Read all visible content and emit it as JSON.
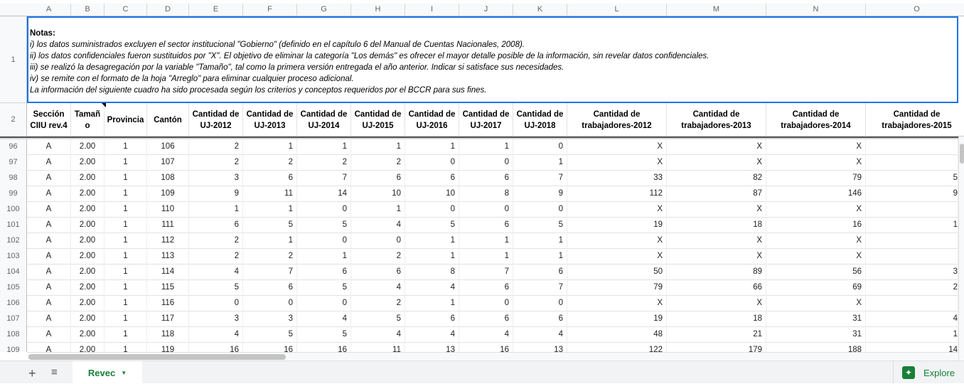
{
  "columns": [
    "A",
    "B",
    "C",
    "D",
    "E",
    "F",
    "G",
    "H",
    "I",
    "J",
    "K",
    "L",
    "M",
    "N",
    "O"
  ],
  "notes": {
    "title": "Notas:",
    "lines": [
      "i) los datos suministrados excluyen el sector institucional \"Gobierno\" (definido en el capítulo 6 del Manual de Cuentas Nacionales, 2008).",
      "ii) los datos confidenciales fueron sustituidos por \"X\". El objetivo de eliminar la categoría \"Los demás\" es ofrecer el mayor detalle posible de la información, sin revelar datos confidenciales.",
      "iii) se realizó la desagregación por la variable \"Tamaño\", tal como la primera versión entregada el año anterior. Indicar si satisface sus necesidades.",
      "iv) se remite con el formato de la hoja \"Arreglo\" para eliminar cualquier proceso adicional.",
      "La información del siguiente cuadro ha sido procesada según los criterios y conceptos requeridos por el BCCR para sus fines."
    ]
  },
  "row_labels": {
    "notes": "1",
    "headers": "2"
  },
  "headers": [
    "Sección CIIU rev.4",
    "Tamañ o",
    "Provincia",
    "Cantón",
    "Cantidad de UJ-2012",
    "Cantidad de UJ-2013",
    "Cantidad de UJ-2014",
    "Cantidad de UJ-2015",
    "Cantidad de UJ-2016",
    "Cantidad de UJ-2017",
    "Cantidad de UJ-2018",
    "Cantidad de trabajadores-2012",
    "Cantidad de trabajadores-2013",
    "Cantidad de trabajadores-2014",
    "Cantidad de trabajadores-2015"
  ],
  "rows": [
    {
      "n": "96",
      "cells": [
        "A",
        "2.00",
        "1",
        "106",
        "2",
        "1",
        "1",
        "1",
        "1",
        "1",
        "0",
        "X",
        "X",
        "X",
        ""
      ]
    },
    {
      "n": "97",
      "cells": [
        "A",
        "2.00",
        "1",
        "107",
        "2",
        "2",
        "2",
        "2",
        "0",
        "0",
        "1",
        "X",
        "X",
        "X",
        ""
      ]
    },
    {
      "n": "98",
      "cells": [
        "A",
        "2.00",
        "1",
        "108",
        "3",
        "6",
        "7",
        "6",
        "6",
        "6",
        "7",
        "33",
        "82",
        "79",
        "5"
      ]
    },
    {
      "n": "99",
      "cells": [
        "A",
        "2.00",
        "1",
        "109",
        "9",
        "11",
        "14",
        "10",
        "10",
        "8",
        "9",
        "112",
        "87",
        "146",
        "9"
      ]
    },
    {
      "n": "100",
      "cells": [
        "A",
        "2.00",
        "1",
        "110",
        "1",
        "1",
        "0",
        "1",
        "0",
        "0",
        "0",
        "X",
        "X",
        "X",
        ""
      ]
    },
    {
      "n": "101",
      "cells": [
        "A",
        "2.00",
        "1",
        "111",
        "6",
        "5",
        "5",
        "4",
        "5",
        "6",
        "5",
        "19",
        "18",
        "16",
        "1"
      ]
    },
    {
      "n": "102",
      "cells": [
        "A",
        "2.00",
        "1",
        "112",
        "2",
        "1",
        "0",
        "0",
        "1",
        "1",
        "1",
        "X",
        "X",
        "X",
        ""
      ]
    },
    {
      "n": "103",
      "cells": [
        "A",
        "2.00",
        "1",
        "113",
        "2",
        "2",
        "1",
        "2",
        "1",
        "1",
        "1",
        "X",
        "X",
        "X",
        ""
      ]
    },
    {
      "n": "104",
      "cells": [
        "A",
        "2.00",
        "1",
        "114",
        "4",
        "7",
        "6",
        "6",
        "8",
        "7",
        "6",
        "50",
        "89",
        "56",
        "3"
      ]
    },
    {
      "n": "105",
      "cells": [
        "A",
        "2.00",
        "1",
        "115",
        "5",
        "6",
        "5",
        "4",
        "4",
        "6",
        "7",
        "79",
        "66",
        "69",
        "2"
      ]
    },
    {
      "n": "106",
      "cells": [
        "A",
        "2.00",
        "1",
        "116",
        "0",
        "0",
        "0",
        "2",
        "1",
        "0",
        "0",
        "X",
        "X",
        "X",
        ""
      ]
    },
    {
      "n": "107",
      "cells": [
        "A",
        "2.00",
        "1",
        "117",
        "3",
        "3",
        "4",
        "5",
        "6",
        "6",
        "6",
        "19",
        "18",
        "31",
        "4"
      ]
    },
    {
      "n": "108",
      "cells": [
        "A",
        "2.00",
        "1",
        "118",
        "4",
        "5",
        "5",
        "4",
        "4",
        "4",
        "4",
        "48",
        "21",
        "31",
        "1"
      ]
    },
    {
      "n": "109",
      "cells": [
        "A",
        "2.00",
        "1",
        "119",
        "16",
        "16",
        "16",
        "11",
        "13",
        "16",
        "13",
        "122",
        "179",
        "188",
        "14"
      ]
    }
  ],
  "sheet_tab": {
    "label": "Revec"
  },
  "explore": {
    "label": "Explore"
  },
  "colors": {
    "accent": "#188038",
    "selection": "#1a73e8"
  }
}
